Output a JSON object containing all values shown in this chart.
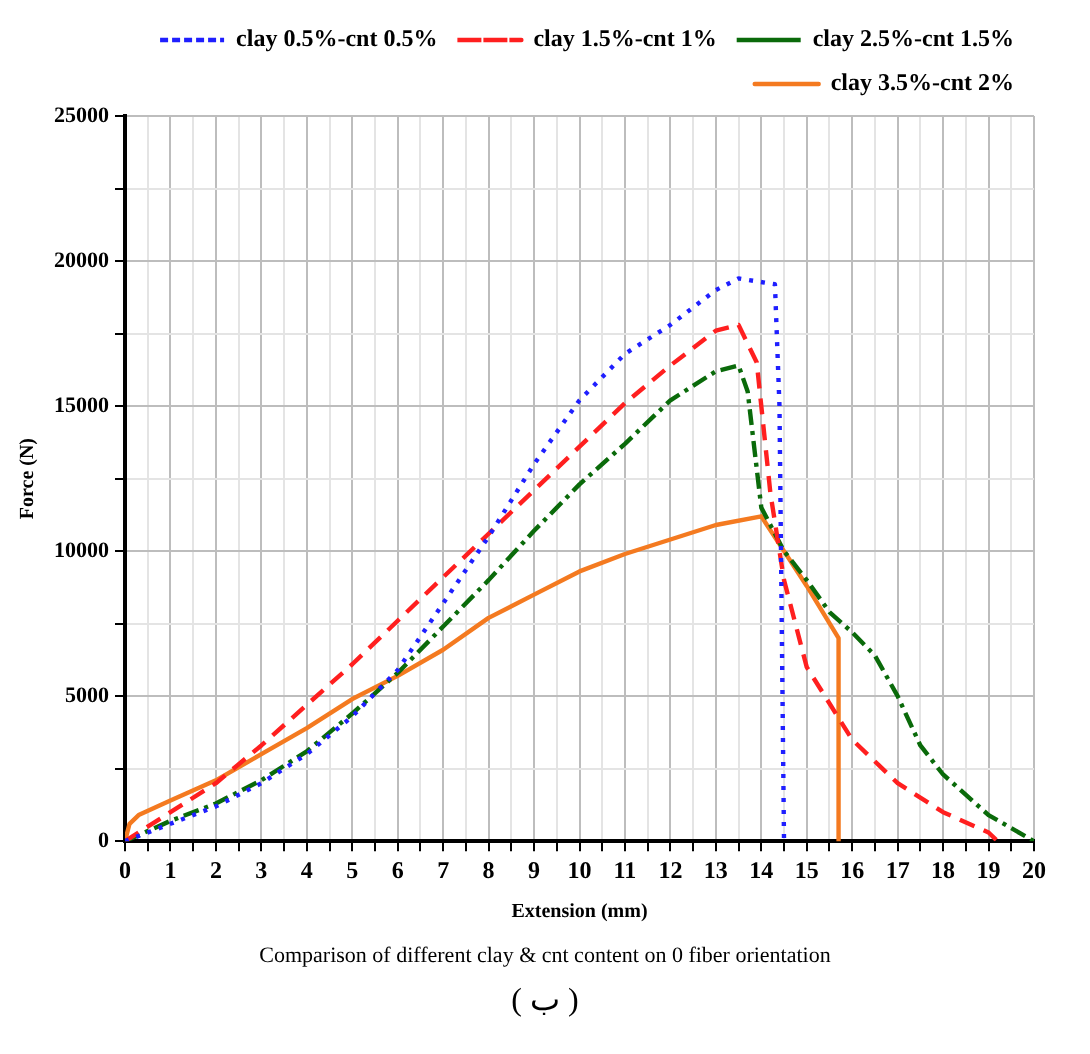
{
  "chart_data": {
    "type": "line",
    "xlabel": "Extension (mm)",
    "ylabel": "Force (N)",
    "annotations": [
      "Comparison of different clay & cnt content on 0 fiber orientation",
      "( ب )"
    ],
    "xlim": [
      0,
      20
    ],
    "ylim": [
      0,
      25000
    ],
    "xticks": [
      0,
      {
        "value": 0.5,
        "label": null
      },
      1,
      {
        "value": 1.5,
        "label": null
      },
      2,
      {
        "value": 2.5,
        "label": null
      },
      3,
      {
        "value": 3.5,
        "label": null
      },
      4,
      {
        "value": 4.5,
        "label": null
      },
      5,
      {
        "value": 5.5,
        "label": null
      },
      6,
      {
        "value": 6.5,
        "label": null
      },
      7,
      {
        "value": 7.5,
        "label": null
      },
      8,
      {
        "value": 8.5,
        "label": null
      },
      9,
      {
        "value": 9.5,
        "label": null
      },
      10,
      {
        "value": 10.5,
        "label": null
      },
      11,
      {
        "value": 11.5,
        "label": null
      },
      12,
      {
        "value": 12.5,
        "label": null
      },
      13,
      {
        "value": 13.5,
        "label": null
      },
      14,
      {
        "value": 14.5,
        "label": null
      },
      15,
      {
        "value": 15.5,
        "label": null
      },
      16,
      {
        "value": 16.5,
        "label": null
      },
      17,
      {
        "value": 17.5,
        "label": null
      },
      18,
      {
        "value": 18.5,
        "label": null
      },
      19,
      {
        "value": 19.5,
        "label": null
      },
      20
    ],
    "yticks": [
      0,
      {
        "value": 2500,
        "label": null
      },
      5000,
      {
        "value": 7500,
        "label": null
      },
      10000,
      {
        "value": 12500,
        "label": null
      },
      15000,
      {
        "value": 17500,
        "label": null
      },
      20000,
      {
        "value": 22500,
        "label": null
      },
      25000
    ],
    "grid": true,
    "legend": "top right",
    "marker": "none",
    "series": [
      {
        "name": "clay 0.5%-cnt 0.5%",
        "color": "#1f1fff",
        "line_style": "dotted",
        "x": [
          0,
          1,
          2,
          3,
          4,
          5,
          6,
          7,
          8,
          9,
          10,
          11,
          12,
          13,
          13.5,
          14.3,
          14.4,
          14.5
        ],
        "values": [
          0,
          600,
          1200,
          2000,
          3000,
          4300,
          5900,
          8200,
          10500,
          13000,
          15200,
          16800,
          17800,
          19000,
          19400,
          19200,
          15000,
          0
        ]
      },
      {
        "name": "clay 1.5%-cnt 1%",
        "color": "#ff1f1f",
        "line_style": "dashed",
        "x": [
          0,
          1,
          2,
          3,
          4,
          5,
          6,
          7,
          8,
          9,
          10,
          11,
          12,
          13,
          13.5,
          13.9,
          14.2,
          14.5,
          15,
          16,
          17,
          18,
          19,
          19.2
        ],
        "values": [
          0,
          1000,
          2000,
          3300,
          4700,
          6100,
          7600,
          9100,
          10600,
          12100,
          13600,
          15100,
          16400,
          17600,
          17800,
          16500,
          12000,
          9000,
          6000,
          3500,
          2000,
          1000,
          300,
          0
        ]
      },
      {
        "name": "clay 2.5%-cnt 1.5%",
        "color": "#0a6a0a",
        "line_style": "dashdot",
        "x": [
          0,
          1,
          2,
          3,
          4,
          5,
          6,
          7,
          8,
          9,
          10,
          11,
          12,
          13,
          13.5,
          13.7,
          14,
          14.5,
          15,
          15.5,
          16,
          16.5,
          17,
          17.5,
          18,
          19,
          20
        ],
        "values": [
          0,
          700,
          1300,
          2100,
          3100,
          4400,
          5800,
          7400,
          9000,
          10700,
          12300,
          13700,
          15200,
          16200,
          16400,
          15500,
          11500,
          10000,
          9000,
          7900,
          7200,
          6400,
          5000,
          3300,
          2300,
          900,
          0
        ]
      },
      {
        "name": "clay 3.5%-cnt 2%",
        "color": "#f47a20",
        "line_style": "solid",
        "x": [
          0,
          0.1,
          0.3,
          1,
          2,
          3,
          4,
          5,
          6,
          7,
          8,
          9,
          10,
          11,
          12,
          13,
          14,
          14.5,
          15,
          15.7,
          15.7
        ],
        "values": [
          0,
          600,
          900,
          1400,
          2100,
          3000,
          3900,
          4900,
          5700,
          6600,
          7700,
          8500,
          9300,
          9900,
          10400,
          10900,
          11200,
          10000,
          8800,
          7000,
          0
        ]
      }
    ]
  }
}
